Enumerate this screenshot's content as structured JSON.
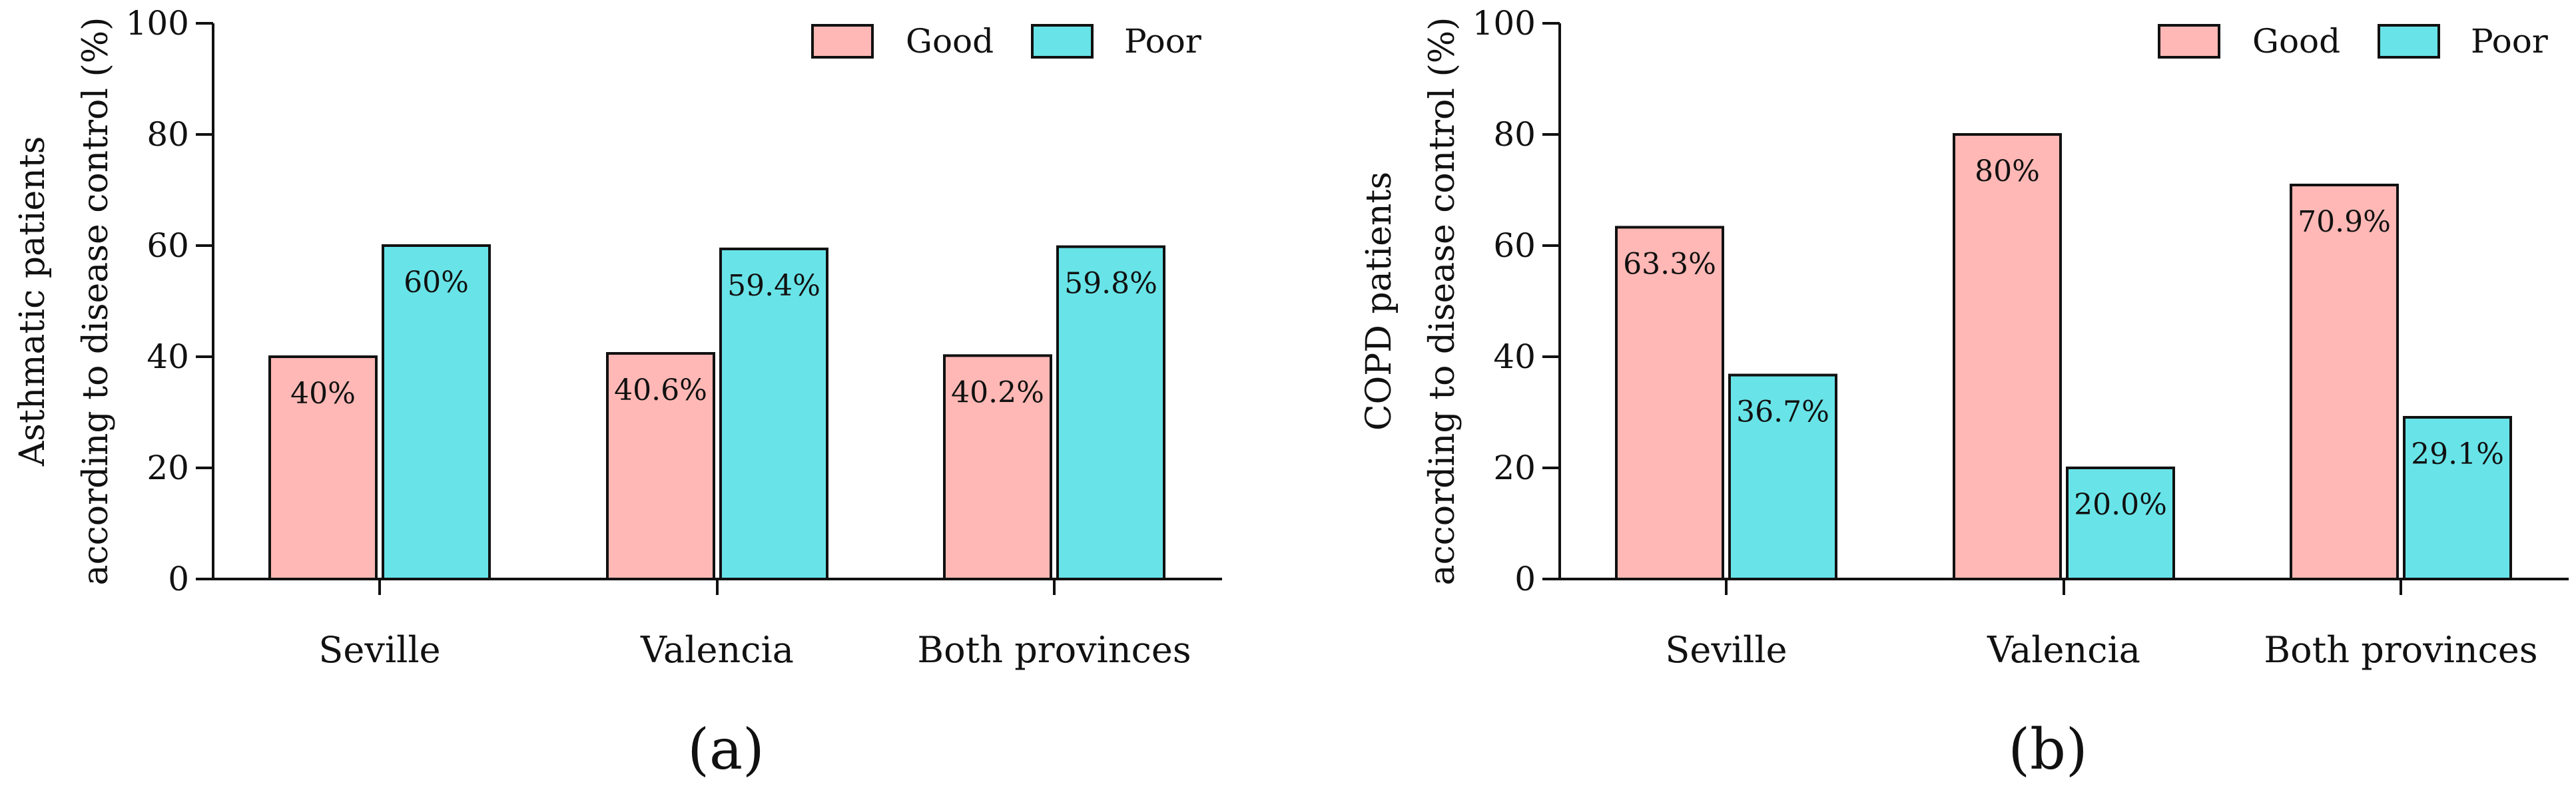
{
  "chart_data": [
    {
      "type": "bar",
      "panel_label": "(a)",
      "title": "",
      "categories": [
        "Seville",
        "Valencia",
        "Both provinces"
      ],
      "series": [
        {
          "name": "Good",
          "color": "#ffb8b5",
          "values": [
            40,
            40.6,
            40.2
          ],
          "labels": [
            "40%",
            "40.6%",
            "40.2%"
          ]
        },
        {
          "name": "Poor",
          "color": "#68e4e8",
          "values": [
            60,
            59.4,
            59.8
          ],
          "labels": [
            "60%",
            "59.4%",
            "59.8%"
          ]
        }
      ],
      "ylabel_lines": [
        "Asthmatic patients",
        "according to disease control (%)"
      ],
      "xlabel": "",
      "ylim": [
        0,
        100
      ],
      "yticks": [
        0,
        20,
        40,
        60,
        80,
        100
      ],
      "grid": false,
      "legend_position": "top-right"
    },
    {
      "type": "bar",
      "panel_label": "(b)",
      "title": "",
      "categories": [
        "Seville",
        "Valencia",
        "Both provinces"
      ],
      "series": [
        {
          "name": "Good",
          "color": "#ffb8b5",
          "values": [
            63.3,
            80,
            70.9
          ],
          "labels": [
            "63.3%",
            "80%",
            "70.9%"
          ]
        },
        {
          "name": "Poor",
          "color": "#68e4e8",
          "values": [
            36.7,
            20.0,
            29.1
          ],
          "labels": [
            "36.7%",
            "20.0%",
            "29.1%"
          ]
        }
      ],
      "ylabel_lines": [
        "COPD patients",
        "according to disease control (%)"
      ],
      "xlabel": "",
      "ylim": [
        0,
        100
      ],
      "yticks": [
        0,
        20,
        40,
        60,
        80,
        100
      ],
      "grid": false,
      "legend_position": "top-right"
    }
  ]
}
